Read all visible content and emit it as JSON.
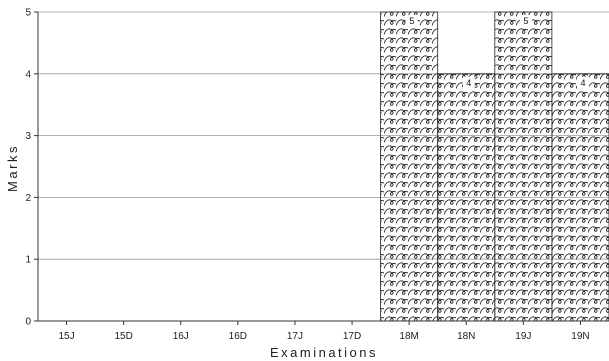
{
  "chart_data": {
    "type": "bar",
    "title": "",
    "xlabel": "Examinations",
    "ylabel": "Marks",
    "ylim": [
      0,
      5
    ],
    "yticks": [
      0,
      1,
      2,
      3,
      4,
      5
    ],
    "grid": true,
    "categories": [
      "15J",
      "15D",
      "16J",
      "16D",
      "17J",
      "17D",
      "18M",
      "18N",
      "19J",
      "19N"
    ],
    "values": [
      0,
      0,
      0,
      0,
      0,
      0,
      5,
      4,
      5,
      4
    ],
    "data_labels": [
      "",
      "",
      "",
      "",
      "",
      "",
      "5",
      "4",
      "5",
      "4"
    ],
    "bar_fill": "wave-hatch"
  }
}
